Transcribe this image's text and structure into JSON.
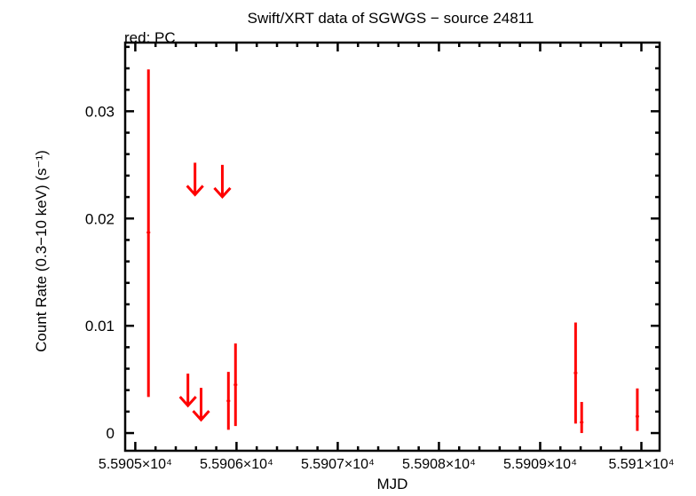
{
  "chart_data": {
    "type": "scatter",
    "title": "Swift/XRT data of SGWGS − source 24811",
    "subtitle": "red: PC",
    "xlabel": "MJD",
    "ylabel": "Count Rate (0.3−10 keV) (s⁻¹)",
    "xlim": [
      55904.9,
      55910.18
    ],
    "ylim": [
      -0.00165,
      0.0364
    ],
    "x_ticks": [
      55905,
      55906,
      55907,
      55908,
      55909,
      55910
    ],
    "x_tick_labels": [
      "5.5905×10⁴",
      "5.5906×10⁴",
      "5.5907×10⁴",
      "5.5908×10⁴",
      "5.5909×10⁴",
      "5.591×10⁴"
    ],
    "y_ticks": [
      0,
      0.01,
      0.02,
      0.03
    ],
    "y_tick_labels": [
      "0",
      "0.01",
      "0.02",
      "0.03"
    ],
    "grid": false,
    "color": "#ff0000",
    "points": [
      {
        "x": 55905.13,
        "y": 0.0187,
        "ylo": 0.00336,
        "yhi": 0.0339
      },
      {
        "x": 55905.92,
        "y": 0.003,
        "ylo": 0.0003,
        "yhi": 0.0057
      },
      {
        "x": 55905.99,
        "y": 0.0045,
        "ylo": 0.00066,
        "yhi": 0.00835
      },
      {
        "x": 55909.35,
        "y": 0.0056,
        "ylo": 0.00088,
        "yhi": 0.0103
      },
      {
        "x": 55909.41,
        "y": 0.001,
        "ylo": 0.0,
        "yhi": 0.0029
      },
      {
        "x": 55909.96,
        "y": 0.00155,
        "ylo": 0.0002,
        "yhi": 0.00416
      }
    ],
    "upper_limits": [
      {
        "x": 55905.59,
        "y": 0.0252
      },
      {
        "x": 55905.86,
        "y": 0.025
      },
      {
        "x": 55905.52,
        "y": 0.00554
      },
      {
        "x": 55905.65,
        "y": 0.00421
      }
    ]
  }
}
